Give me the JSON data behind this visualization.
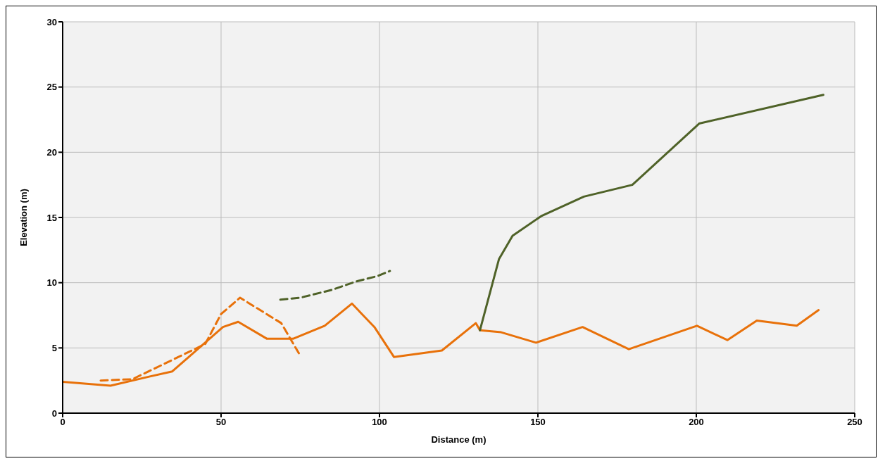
{
  "chart_data": {
    "type": "line",
    "xlabel": "Distance (m)",
    "ylabel": "Elevation (m)",
    "xlim": [
      0,
      250
    ],
    "xticks": [
      0,
      50,
      100,
      150,
      200,
      250
    ],
    "ylim": [
      0,
      30
    ],
    "yticks": [
      0,
      5,
      10,
      15,
      20,
      25,
      30
    ],
    "grid": true,
    "legend": false,
    "marker": "none",
    "series": [
      {
        "color": "#e8710a",
        "line_style": "solid",
        "x": [
          0,
          15.1,
          27.3,
          34.6,
          50.6,
          55.4,
          64.5,
          72.7,
          82.7,
          91.3,
          98.4,
          104.6,
          119.7,
          130.4,
          131.7,
          138.4,
          149.4,
          164.1,
          178.7,
          200.2,
          209.8,
          219.1,
          231.7,
          238.6
        ],
        "values": [
          2.4,
          2.1,
          2.8,
          3.2,
          6.6,
          7.0,
          5.7,
          5.7,
          6.7,
          8.4,
          6.6,
          4.3,
          4.8,
          6.9,
          6.35,
          6.2,
          5.4,
          6.6,
          4.9,
          6.7,
          5.6,
          7.1,
          6.7,
          7.9
        ]
      },
      {
        "color": "#e8710a",
        "line_style": "dashed",
        "x": [
          12,
          22,
          45,
          50,
          56,
          69,
          75
        ],
        "values": [
          2.5,
          2.6,
          5.3,
          7.6,
          8.85,
          6.9,
          4.4
        ]
      },
      {
        "color": "#4f6228",
        "line_style": "dashed",
        "x": [
          68.7,
          75,
          85,
          92.7,
          99.3,
          103.3
        ],
        "values": [
          8.7,
          8.85,
          9.45,
          10.1,
          10.5,
          10.9
        ]
      },
      {
        "color": "#4f6228",
        "line_style": "solid",
        "x": [
          131.7,
          137.7,
          142,
          151,
          164.5,
          179.8,
          200.9,
          240.1
        ],
        "values": [
          6.35,
          11.8,
          13.6,
          15.1,
          16.6,
          17.5,
          22.2,
          24.4
        ]
      }
    ]
  }
}
